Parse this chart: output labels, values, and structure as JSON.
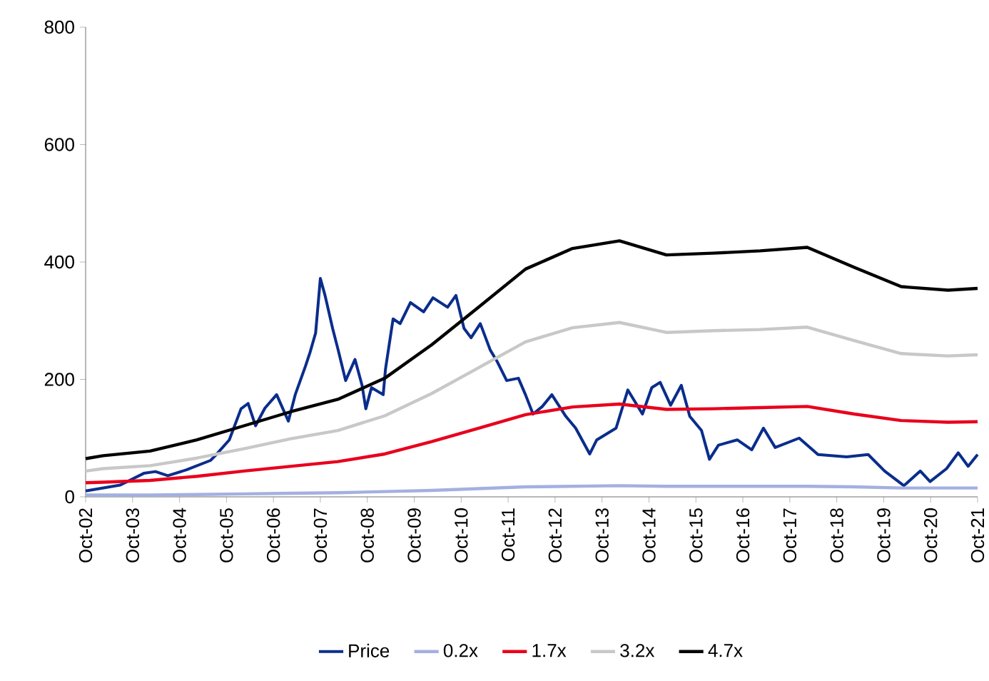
{
  "chart_data": {
    "type": "line",
    "legend": "bottom",
    "grid": false,
    "xlim": [
      "2002-10",
      "2021-10"
    ],
    "ylim": [
      0,
      800
    ],
    "yticks": [
      0,
      200,
      400,
      600,
      800
    ],
    "xticks": [
      {
        "value": "2002-10",
        "label": "Oct-02"
      },
      {
        "value": "2003-10",
        "label": "Oct-03"
      },
      {
        "value": "2004-10",
        "label": "Oct-04"
      },
      {
        "value": "2005-10",
        "label": "Oct-05"
      },
      {
        "value": "2006-10",
        "label": "Oct-06"
      },
      {
        "value": "2007-10",
        "label": "Oct-07"
      },
      {
        "value": "2008-10",
        "label": "Oct-08"
      },
      {
        "value": "2009-10",
        "label": "Oct-09"
      },
      {
        "value": "2010-10",
        "label": "Oct-10"
      },
      {
        "value": "2011-10",
        "label": "Oct-11"
      },
      {
        "value": "2012-10",
        "label": "Oct-12"
      },
      {
        "value": "2013-10",
        "label": "Oct-13"
      },
      {
        "value": "2014-10",
        "label": "Oct-14"
      },
      {
        "value": "2015-10",
        "label": "Oct-15"
      },
      {
        "value": "2016-10",
        "label": "Oct-16"
      },
      {
        "value": "2017-10",
        "label": "Oct-17"
      },
      {
        "value": "2018-10",
        "label": "Oct-18"
      },
      {
        "value": "2019-10",
        "label": "Oct-19"
      },
      {
        "value": "2020-10",
        "label": "Oct-20"
      },
      {
        "value": "2021-10",
        "label": "Oct-21"
      }
    ],
    "series": [
      {
        "name": "Price",
        "color": "#0a2d8c",
        "x": [
          "2002-10-01",
          "2003-06-27",
          "2003-12-27",
          "2004-03-27",
          "2004-07-01",
          "2004-11-25",
          "2005-05-29",
          "2005-07-05",
          "2005-10-23",
          "2006-01-23",
          "2006-03-17",
          "2006-05-14",
          "2006-07-26",
          "2006-10-26",
          "2007-01-26",
          "2007-03-20",
          "2007-06-06",
          "2007-07-12",
          "2007-08-25",
          "2007-10-01",
          "2007-11-07",
          "2008-01-05",
          "2008-02-18",
          "2008-04-15",
          "2008-06-27",
          "2008-08-21",
          "2008-09-20",
          "2008-11-03",
          "2009-02-03",
          "2009-02-21",
          "2009-04-19",
          "2009-06-13",
          "2009-09-02",
          "2009-12-13",
          "2010-02-25",
          "2010-06-17",
          "2010-08-21",
          "2010-10-23",
          "2010-12-17",
          "2011-02-28",
          "2011-05-14",
          "2011-07-08",
          "2011-09-20",
          "2011-12-20",
          "2012-02-14",
          "2012-04-12",
          "2012-06-24",
          "2012-09-06",
          "2012-12-24",
          "2013-03-09",
          "2013-06-27",
          "2013-08-21",
          "2014-01-19",
          "2014-04-19",
          "2014-08-11",
          "2014-10-23",
          "2014-12-27",
          "2015-03-17",
          "2015-06-09",
          "2015-08-14",
          "2015-11-14",
          "2016-01-15",
          "2016-03-24",
          "2016-08-18",
          "2016-12-09",
          "2017-03-09",
          "2017-06-09",
          "2017-12-13",
          "2018-05-07",
          "2018-12-17",
          "2019-06-02",
          "2019-10-08",
          "2020-03-06",
          "2020-07-12",
          "2020-09-27",
          "2021-02-03",
          "2021-05-03",
          "2021-07-19",
          "2021-10-01"
        ],
        "values": [
          10,
          20,
          40,
          43,
          36,
          46,
          62,
          70,
          97,
          150,
          159,
          121,
          151,
          174,
          129,
          175,
          222,
          246,
          279,
          372,
          343,
          287,
          250,
          198,
          234,
          190,
          150,
          186,
          174,
          218,
          303,
          295,
          331,
          315,
          339,
          323,
          343,
          287,
          271,
          295,
          250,
          230,
          198,
          202,
          174,
          141,
          154,
          174,
          137,
          117,
          73,
          97,
          117,
          182,
          141,
          186,
          195,
          156,
          190,
          137,
          113,
          64,
          88,
          97,
          80,
          117,
          84,
          100,
          72,
          68,
          72,
          44,
          19,
          44,
          26,
          48,
          75,
          52,
          72
        ]
      },
      {
        "name": "0.2x",
        "color": "#a3b0e0",
        "x": [
          "2002-10-01",
          "2003-02-15",
          "2004-02-15",
          "2005-02-15",
          "2006-02-15",
          "2007-02-15",
          "2008-02-15",
          "2009-02-15",
          "2010-02-15",
          "2011-02-15",
          "2012-02-15",
          "2013-02-15",
          "2014-02-15",
          "2015-02-15",
          "2016-02-15",
          "2017-02-15",
          "2018-02-15",
          "2019-02-15",
          "2020-02-15",
          "2021-02-15",
          "2021-10-01"
        ],
        "values": [
          3,
          3,
          3,
          4,
          5,
          6,
          7,
          9,
          11,
          14,
          17,
          18,
          19,
          18,
          18,
          18,
          18,
          17,
          15,
          15,
          15
        ]
      },
      {
        "name": "1.7x",
        "color": "#e8001c",
        "x": [
          "2002-10-01",
          "2003-02-15",
          "2004-02-15",
          "2005-02-15",
          "2006-02-15",
          "2007-02-15",
          "2008-02-15",
          "2009-02-15",
          "2010-02-15",
          "2011-02-15",
          "2012-02-15",
          "2013-02-15",
          "2014-02-15",
          "2015-02-15",
          "2016-02-15",
          "2017-02-15",
          "2018-02-15",
          "2019-02-15",
          "2020-02-15",
          "2021-02-15",
          "2021-10-01"
        ],
        "values": [
          24,
          25,
          28,
          35,
          44,
          52,
          60,
          73,
          94,
          117,
          140,
          153,
          158,
          149,
          150,
          152,
          154,
          141,
          130,
          127,
          128
        ]
      },
      {
        "name": "3.2x",
        "color": "#c8c8c8",
        "x": [
          "2002-10-01",
          "2003-02-15",
          "2004-02-15",
          "2005-02-15",
          "2006-02-15",
          "2007-02-15",
          "2008-02-15",
          "2009-02-15",
          "2010-02-15",
          "2011-02-15",
          "2012-02-15",
          "2013-02-15",
          "2014-02-15",
          "2015-02-15",
          "2016-02-15",
          "2017-02-15",
          "2018-02-15",
          "2019-02-15",
          "2020-02-15",
          "2021-02-15",
          "2021-10-01"
        ],
        "values": [
          44,
          48,
          53,
          66,
          82,
          99,
          113,
          138,
          176,
          220,
          264,
          288,
          297,
          280,
          283,
          285,
          289,
          266,
          244,
          240,
          242
        ]
      },
      {
        "name": "4.7x",
        "color": "#000000",
        "x": [
          "2002-10-01",
          "2003-02-15",
          "2004-02-15",
          "2005-02-15",
          "2006-02-15",
          "2007-02-15",
          "2008-02-15",
          "2009-02-15",
          "2010-02-15",
          "2011-02-15",
          "2012-02-15",
          "2013-02-15",
          "2014-02-15",
          "2015-02-15",
          "2016-02-15",
          "2017-02-15",
          "2018-02-15",
          "2019-02-15",
          "2020-02-15",
          "2021-02-15",
          "2021-10-01"
        ],
        "values": [
          65,
          70,
          78,
          97,
          121,
          145,
          166,
          202,
          259,
          323,
          388,
          423,
          436,
          412,
          415,
          419,
          425,
          391,
          358,
          352,
          355
        ]
      }
    ]
  }
}
